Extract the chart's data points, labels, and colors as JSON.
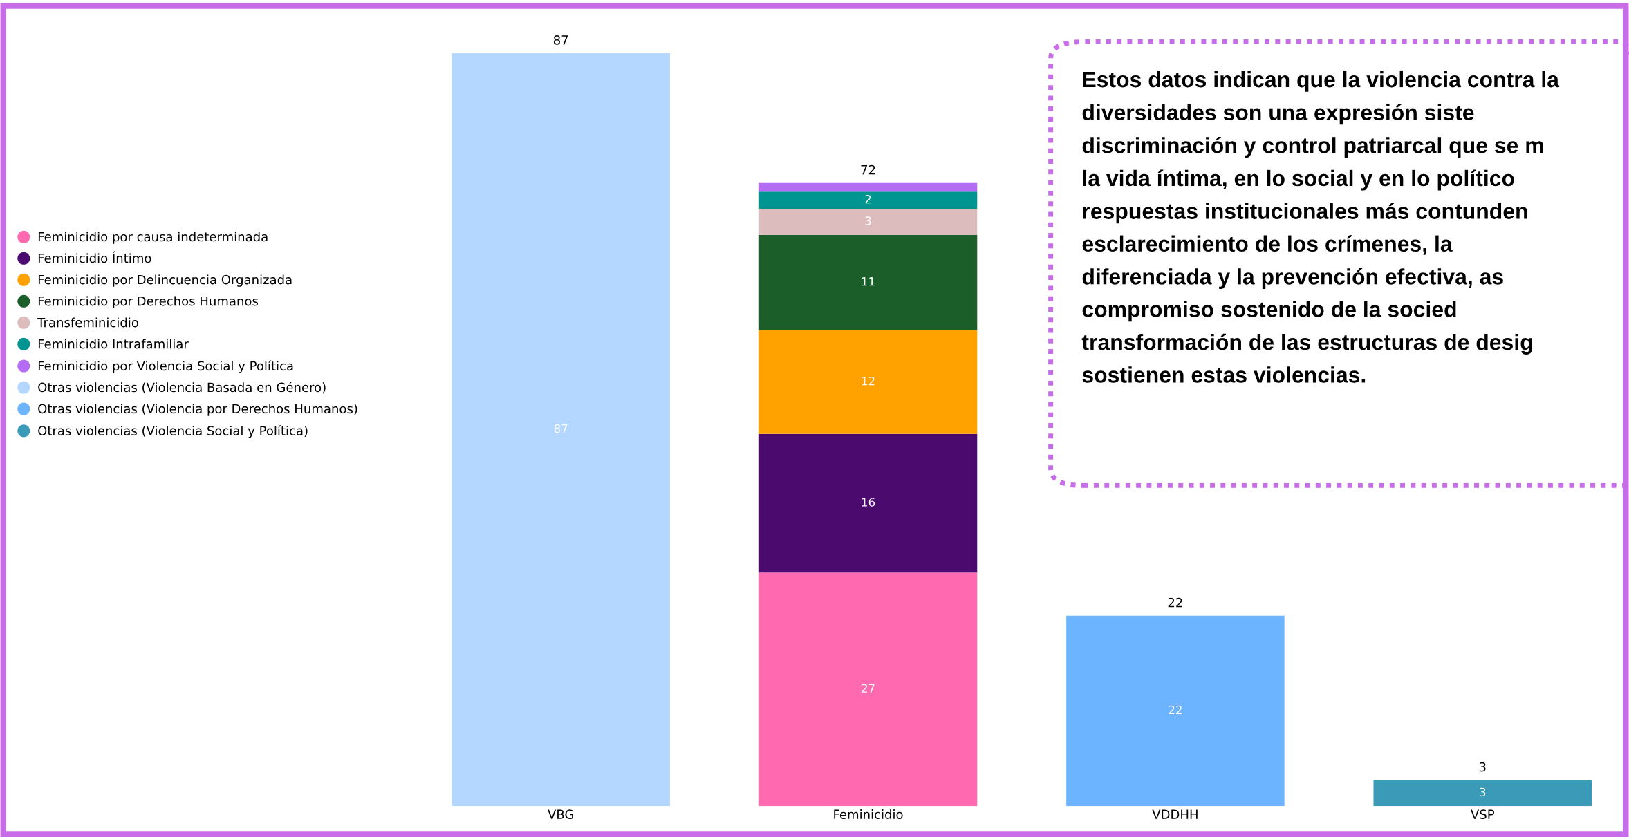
{
  "chart_data": {
    "type": "bar",
    "stacked": true,
    "categories": [
      "VBG",
      "Feminicidio",
      "VDDHH",
      "VSP"
    ],
    "series": [
      {
        "name": "Feminicidio por causa indeterminada",
        "color": "#ff69b0",
        "values": [
          null,
          27,
          null,
          null
        ],
        "value_labels": [
          null,
          "27",
          null,
          null
        ]
      },
      {
        "name": "Feminicidio Íntimo",
        "color": "#4a0a6e",
        "values": [
          null,
          16,
          null,
          null
        ],
        "value_labels": [
          null,
          "16",
          null,
          null
        ]
      },
      {
        "name": "Feminicidio por Delincuencia Organizada",
        "color": "#ffa200",
        "values": [
          null,
          12,
          null,
          null
        ],
        "value_labels": [
          null,
          "12",
          null,
          null
        ]
      },
      {
        "name": "Feminicidio por Derechos Humanos",
        "color": "#1b5e2a",
        "values": [
          null,
          11,
          null,
          null
        ],
        "value_labels": [
          null,
          "11",
          null,
          null
        ]
      },
      {
        "name": "Transfeminicidio",
        "color": "#dcbcbc",
        "values": [
          null,
          3,
          null,
          null
        ],
        "value_labels": [
          null,
          "3",
          null,
          null
        ]
      },
      {
        "name": "Feminicidio Intrafamiliar",
        "color": "#009590",
        "values": [
          null,
          2,
          null,
          null
        ],
        "value_labels": [
          null,
          "2",
          null,
          null
        ]
      },
      {
        "name": "Feminicidio por Violencia Social y Política",
        "color": "#b56cf5",
        "values": [
          null,
          1,
          null,
          null
        ],
        "value_labels": [
          null,
          null,
          null,
          null
        ]
      },
      {
        "name": "Otras violencias (Violencia Basada en Género)",
        "color": "#b3d7ff",
        "values": [
          87,
          null,
          null,
          null
        ],
        "value_labels": [
          "87",
          null,
          null,
          null
        ]
      },
      {
        "name": "Otras violencias (Violencia por Derechos Humanos)",
        "color": "#6cb4ff",
        "values": [
          null,
          null,
          22,
          null
        ],
        "value_labels": [
          null,
          null,
          "22",
          null
        ]
      },
      {
        "name": "Otras violencias (Violencia Social y Política)",
        "color": "#3a9ab8",
        "values": [
          null,
          null,
          null,
          3
        ],
        "value_labels": [
          null,
          null,
          null,
          "3"
        ]
      }
    ],
    "totals": [
      "87",
      "72",
      "22",
      "3"
    ],
    "legend": "left",
    "grid": false,
    "annotations": [
      "Estos datos indican que la violencia contra la\ndiversidades son una expresión siste\ndiscriminación y control patriarcal que se m\nla vida íntima, en lo social y en lo político\nrespuestas institucionales más contunden\nesclarecimiento de los crímenes, la\ndiferenciada y la prevención efectiva, as\ncompromiso sostenido de la socied\ntransformación de las estructuras de desig\nsostienen estas violencias."
    ]
  }
}
